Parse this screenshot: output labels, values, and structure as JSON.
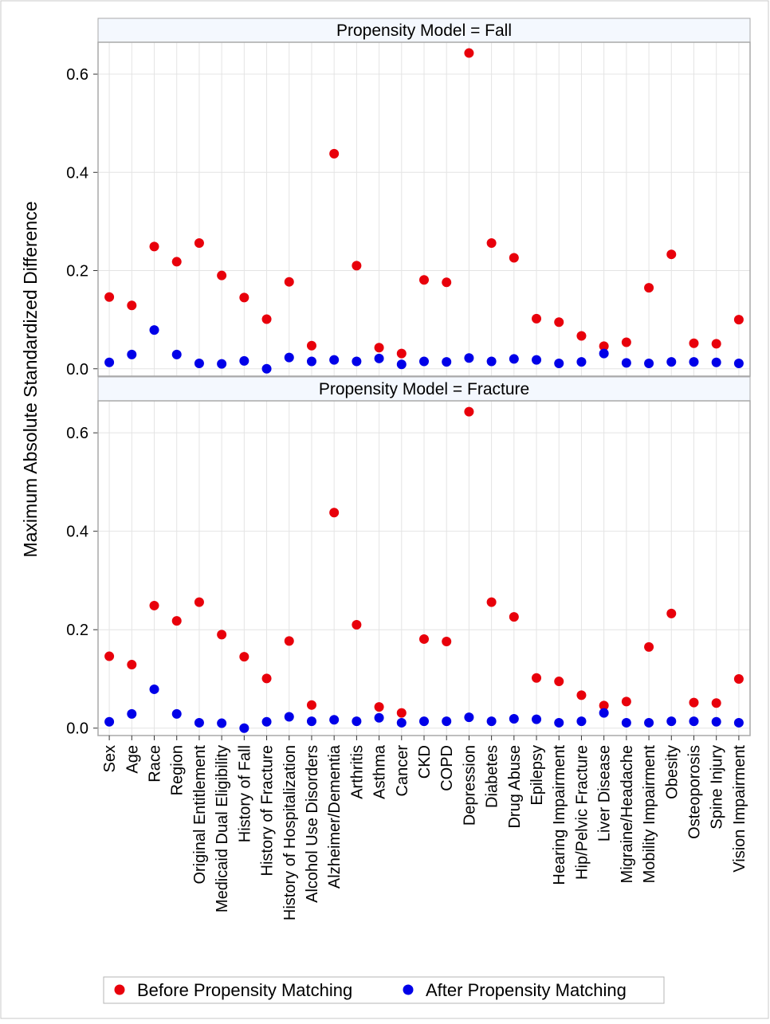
{
  "chart_data": {
    "type": "scatter",
    "ylabel": "Maximum Absolute Standardized Difference",
    "categories": [
      "Sex",
      "Age",
      "Race",
      "Region",
      "Original Entitlement",
      "Medicaid Dual Eligibility",
      "History of Fall",
      "History of Fracture",
      "History of Hospitalization",
      "Alcohol Use Disorders",
      "Alzheimer/Dementia",
      "Arthritis",
      "Asthma",
      "Cancer",
      "CKD",
      "COPD",
      "Depression",
      "Diabetes",
      "Drug Abuse",
      "Epilepsy",
      "Hearing Impairment",
      "Hip/Pelvic Fracture",
      "Liver Disease",
      "Migraine/Headache",
      "Mobility Impairment",
      "Obesity",
      "Osteoporosis",
      "Spine Injury",
      "Vision Impairment"
    ],
    "ylim": [
      -0.015,
      0.665
    ],
    "yticks": [
      "0.0",
      "0.2",
      "0.4",
      "0.6"
    ],
    "ytick_values": [
      0.0,
      0.2,
      0.4,
      0.6
    ],
    "grid": true,
    "legend_position": "bottom",
    "series_colors": {
      "before": "#e8000b",
      "after": "#0000e8"
    },
    "panels": [
      {
        "title": "Propensity Model = Fall",
        "series": [
          {
            "name": "Before Propensity Matching",
            "color": "#e8000b",
            "values": [
              0.146,
              0.129,
              0.249,
              0.218,
              0.256,
              0.19,
              0.145,
              0.101,
              0.177,
              0.047,
              0.438,
              0.21,
              0.043,
              0.031,
              0.181,
              0.176,
              0.643,
              0.256,
              0.226,
              0.102,
              0.095,
              0.067,
              0.046,
              0.054,
              0.165,
              0.233,
              0.052,
              0.051,
              0.1
            ]
          },
          {
            "name": "After Propensity Matching",
            "color": "#0000e8",
            "values": [
              0.013,
              0.029,
              0.079,
              0.029,
              0.011,
              0.01,
              0.016,
              0.0,
              0.023,
              0.015,
              0.018,
              0.015,
              0.021,
              0.009,
              0.015,
              0.014,
              0.022,
              0.015,
              0.02,
              0.018,
              0.011,
              0.014,
              0.031,
              0.012,
              0.011,
              0.014,
              0.014,
              0.013,
              0.011
            ]
          }
        ]
      },
      {
        "title": "Propensity Model = Fracture",
        "series": [
          {
            "name": "Before Propensity Matching",
            "color": "#e8000b",
            "values": [
              0.146,
              0.129,
              0.249,
              0.218,
              0.256,
              0.19,
              0.145,
              0.101,
              0.177,
              0.047,
              0.438,
              0.21,
              0.043,
              0.031,
              0.181,
              0.176,
              0.643,
              0.256,
              0.226,
              0.102,
              0.095,
              0.067,
              0.046,
              0.054,
              0.165,
              0.233,
              0.052,
              0.051,
              0.1
            ]
          },
          {
            "name": "After Propensity Matching",
            "color": "#0000e8",
            "values": [
              0.013,
              0.029,
              0.079,
              0.029,
              0.011,
              0.01,
              0.0,
              0.013,
              0.023,
              0.014,
              0.017,
              0.014,
              0.021,
              0.011,
              0.014,
              0.014,
              0.022,
              0.014,
              0.019,
              0.018,
              0.011,
              0.014,
              0.031,
              0.011,
              0.011,
              0.014,
              0.014,
              0.013,
              0.011
            ]
          }
        ]
      }
    ],
    "legend": [
      {
        "label": "Before Propensity Matching",
        "color": "#e8000b"
      },
      {
        "label": "After Propensity Matching",
        "color": "#0000e8"
      }
    ]
  }
}
